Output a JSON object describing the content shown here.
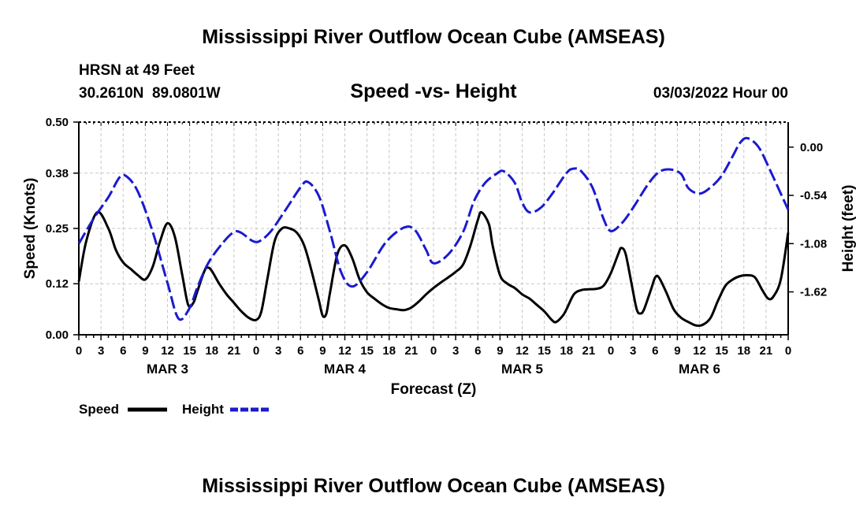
{
  "page_title": "Mississippi River Outflow Ocean Cube (AMSEAS)",
  "footer_title": "Mississippi River Outflow Ocean Cube (AMSEAS)",
  "station": {
    "name": "HRSN at 49 Feet",
    "coords": "30.2610N  89.0801W"
  },
  "issued": "03/03/2022 Hour 00",
  "chart_data": {
    "type": "line",
    "title": "Speed -vs- Height",
    "xlabel": "Forecast (Z)",
    "ylabel": "Speed (Knots)",
    "ylabel_right": "Height (feet)",
    "x_range_hours": [
      0,
      96
    ],
    "ylim": [
      0,
      0.5
    ],
    "ylim_right": [
      -2.1,
      0.28
    ],
    "y_ticks": [
      0.0,
      0.12,
      0.25,
      0.38,
      0.5
    ],
    "y_tick_labels": [
      "0.00",
      "0.12",
      "0.25",
      "0.38",
      "0.50"
    ],
    "y_right_ticks": [
      0.0,
      -0.54,
      -1.08,
      -1.62
    ],
    "y_right_tick_labels": [
      "0.00",
      "-0.54",
      "-1.08",
      "-1.62"
    ],
    "x_ticks": [
      0,
      3,
      6,
      9,
      12,
      15,
      18,
      21,
      24,
      27,
      30,
      33,
      36,
      39,
      42,
      45,
      48,
      51,
      54,
      57,
      60,
      63,
      66,
      69,
      72,
      75,
      78,
      81,
      84,
      87,
      90,
      93,
      96
    ],
    "x_tick_labels": [
      "0",
      "3",
      "6",
      "9",
      "12",
      "15",
      "18",
      "21",
      "0",
      "3",
      "6",
      "9",
      "12",
      "15",
      "18",
      "21",
      "0",
      "3",
      "6",
      "9",
      "12",
      "15",
      "18",
      "21",
      "0",
      "3",
      "6",
      "9",
      "12",
      "15",
      "18",
      "21",
      "0"
    ],
    "day_labels": [
      {
        "label": "MAR 3",
        "hour": 12
      },
      {
        "label": "MAR 4",
        "hour": 36
      },
      {
        "label": "MAR 5",
        "hour": 60
      },
      {
        "label": "MAR 6",
        "hour": 84
      }
    ],
    "series": [
      {
        "name": "Speed",
        "axis": "left",
        "color": "#000000",
        "dash": "solid",
        "points": [
          [
            0,
            0.125
          ],
          [
            1,
            0.22
          ],
          [
            2.5,
            0.288
          ],
          [
            4,
            0.25
          ],
          [
            5,
            0.2
          ],
          [
            6,
            0.17
          ],
          [
            7,
            0.155
          ],
          [
            8,
            0.14
          ],
          [
            9,
            0.13
          ],
          [
            10,
            0.16
          ],
          [
            11,
            0.22
          ],
          [
            12,
            0.262
          ],
          [
            13,
            0.23
          ],
          [
            14,
            0.14
          ],
          [
            14.8,
            0.07
          ],
          [
            15.5,
            0.075
          ],
          [
            16,
            0.1
          ],
          [
            17,
            0.15
          ],
          [
            17.5,
            0.158
          ],
          [
            18,
            0.15
          ],
          [
            19,
            0.12
          ],
          [
            20,
            0.095
          ],
          [
            21,
            0.075
          ],
          [
            22,
            0.055
          ],
          [
            23,
            0.04
          ],
          [
            24,
            0.035
          ],
          [
            24.7,
            0.055
          ],
          [
            25.5,
            0.13
          ],
          [
            26.5,
            0.22
          ],
          [
            27.5,
            0.25
          ],
          [
            28.5,
            0.25
          ],
          [
            29.5,
            0.24
          ],
          [
            30.5,
            0.21
          ],
          [
            31.5,
            0.15
          ],
          [
            32.5,
            0.08
          ],
          [
            33,
            0.045
          ],
          [
            33.5,
            0.05
          ],
          [
            34,
            0.1
          ],
          [
            35,
            0.19
          ],
          [
            36,
            0.21
          ],
          [
            37,
            0.18
          ],
          [
            38,
            0.13
          ],
          [
            39,
            0.1
          ],
          [
            40,
            0.085
          ],
          [
            41,
            0.072
          ],
          [
            42,
            0.063
          ],
          [
            43,
            0.06
          ],
          [
            44,
            0.058
          ],
          [
            45,
            0.064
          ],
          [
            46,
            0.078
          ],
          [
            47,
            0.095
          ],
          [
            48,
            0.11
          ],
          [
            49,
            0.123
          ],
          [
            50,
            0.135
          ],
          [
            51,
            0.148
          ],
          [
            52,
            0.165
          ],
          [
            53,
            0.21
          ],
          [
            54,
            0.27
          ],
          [
            54.5,
            0.288
          ],
          [
            55.5,
            0.26
          ],
          [
            56,
            0.21
          ],
          [
            57,
            0.14
          ],
          [
            58,
            0.12
          ],
          [
            59,
            0.11
          ],
          [
            60,
            0.095
          ],
          [
            61,
            0.085
          ],
          [
            62,
            0.07
          ],
          [
            63,
            0.055
          ],
          [
            64,
            0.035
          ],
          [
            64.6,
            0.03
          ],
          [
            65.5,
            0.045
          ],
          [
            66,
            0.06
          ],
          [
            67,
            0.095
          ],
          [
            68,
            0.105
          ],
          [
            69,
            0.107
          ],
          [
            70,
            0.108
          ],
          [
            71,
            0.115
          ],
          [
            72,
            0.145
          ],
          [
            73,
            0.19
          ],
          [
            73.4,
            0.204
          ],
          [
            74,
            0.19
          ],
          [
            74.8,
            0.12
          ],
          [
            75.5,
            0.06
          ],
          [
            76,
            0.05
          ],
          [
            76.5,
            0.06
          ],
          [
            77.5,
            0.11
          ],
          [
            78,
            0.135
          ],
          [
            78.5,
            0.135
          ],
          [
            79.5,
            0.1
          ],
          [
            80.5,
            0.06
          ],
          [
            81.5,
            0.04
          ],
          [
            82.5,
            0.03
          ],
          [
            83.5,
            0.022
          ],
          [
            84.5,
            0.024
          ],
          [
            85.5,
            0.04
          ],
          [
            86.5,
            0.08
          ],
          [
            87.5,
            0.115
          ],
          [
            88.5,
            0.13
          ],
          [
            89.5,
            0.138
          ],
          [
            90.5,
            0.14
          ],
          [
            91.5,
            0.135
          ],
          [
            92.5,
            0.105
          ],
          [
            93.3,
            0.085
          ],
          [
            94,
            0.09
          ],
          [
            95,
            0.13
          ],
          [
            96,
            0.24
          ]
        ]
      },
      {
        "name": "Height",
        "axis": "right",
        "color": "#1a1ad0",
        "dash": "dashed",
        "points": [
          [
            0,
            -1.08
          ],
          [
            2,
            -0.8
          ],
          [
            4,
            -0.56
          ],
          [
            5.5,
            -0.34
          ],
          [
            6.5,
            -0.33
          ],
          [
            8,
            -0.5
          ],
          [
            10,
            -0.95
          ],
          [
            12,
            -1.52
          ],
          [
            13.5,
            -1.92
          ],
          [
            15,
            -1.8
          ],
          [
            16,
            -1.58
          ],
          [
            17.5,
            -1.3
          ],
          [
            19.5,
            -1.07
          ],
          [
            21,
            -0.95
          ],
          [
            22,
            -0.96
          ],
          [
            23.5,
            -1.05
          ],
          [
            24.5,
            -1.05
          ],
          [
            26,
            -0.94
          ],
          [
            28,
            -0.7
          ],
          [
            30,
            -0.45
          ],
          [
            31,
            -0.39
          ],
          [
            32.5,
            -0.55
          ],
          [
            34,
            -0.95
          ],
          [
            35.5,
            -1.4
          ],
          [
            37,
            -1.56
          ],
          [
            39,
            -1.4
          ],
          [
            41.5,
            -1.07
          ],
          [
            44,
            -0.9
          ],
          [
            45.5,
            -0.93
          ],
          [
            47,
            -1.15
          ],
          [
            48,
            -1.3
          ],
          [
            50,
            -1.2
          ],
          [
            52,
            -0.95
          ],
          [
            53.5,
            -0.6
          ],
          [
            55,
            -0.4
          ],
          [
            56.5,
            -0.3
          ],
          [
            57.5,
            -0.27
          ],
          [
            59,
            -0.4
          ],
          [
            60,
            -0.62
          ],
          [
            61,
            -0.73
          ],
          [
            62.5,
            -0.68
          ],
          [
            64,
            -0.53
          ],
          [
            66,
            -0.29
          ],
          [
            67,
            -0.24
          ],
          [
            68,
            -0.27
          ],
          [
            69.5,
            -0.45
          ],
          [
            71,
            -0.8
          ],
          [
            72,
            -0.94
          ],
          [
            73.5,
            -0.85
          ],
          [
            75,
            -0.68
          ],
          [
            77,
            -0.42
          ],
          [
            78.5,
            -0.28
          ],
          [
            80,
            -0.25
          ],
          [
            81.5,
            -0.3
          ],
          [
            82.5,
            -0.46
          ],
          [
            84,
            -0.52
          ],
          [
            85.5,
            -0.45
          ],
          [
            87,
            -0.32
          ],
          [
            88.5,
            -0.1
          ],
          [
            89.5,
            0.05
          ],
          [
            90.5,
            0.1
          ],
          [
            92,
            0.0
          ],
          [
            93.5,
            -0.25
          ],
          [
            95,
            -0.52
          ],
          [
            96,
            -0.7
          ]
        ]
      }
    ],
    "legend": [
      {
        "label": "Speed",
        "color": "#000000",
        "dash": "solid"
      },
      {
        "label": "Height",
        "color": "#1a1ad0",
        "dash": "dashed"
      }
    ],
    "grid": true,
    "legend_position": "bottom-left"
  }
}
